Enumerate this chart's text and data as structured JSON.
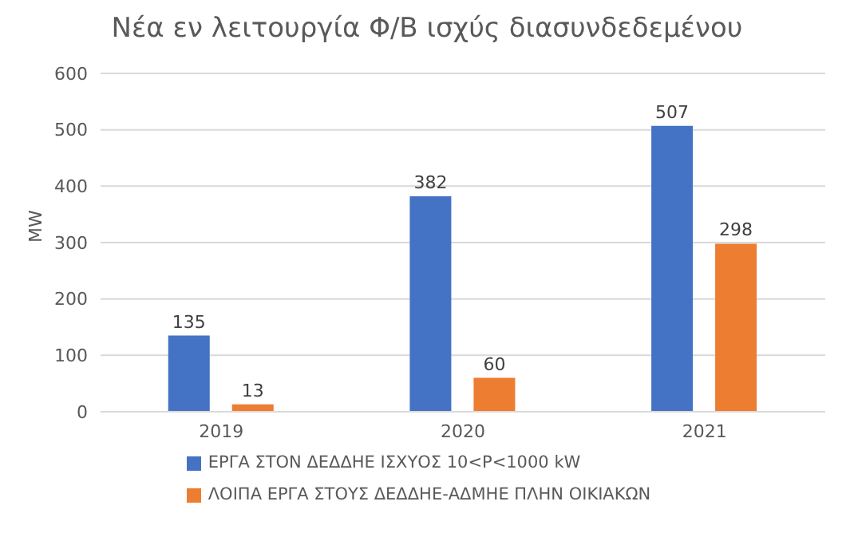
{
  "chart_data": {
    "type": "bar",
    "title": "Νέα εν λειτουργία Φ/Β ισχύς διασυνδεδεμένου",
    "ylabel": "MW",
    "categories": [
      "2019",
      "2020",
      "2021"
    ],
    "series": [
      {
        "name": "ΕΡΓΑ ΣΤΟΝ ΔΕΔΔΗΕ ΙΣΧΥΟΣ 10<P<1000 kW",
        "color": "#4472c4",
        "values": [
          135,
          382,
          507
        ]
      },
      {
        "name": "ΛΟΙΠΑ ΕΡΓΑ ΣΤΟΥΣ ΔΕΔΔΗΕ-ΑΔΜΗΕ ΠΛΗΝ ΟΙΚΙΑΚΩΝ",
        "color": "#ed7d31",
        "values": [
          13,
          60,
          298
        ]
      }
    ],
    "ylim": [
      0,
      600
    ],
    "yticks": [
      0,
      100,
      200,
      300,
      400,
      500,
      600
    ],
    "grid": "y",
    "legend": "bottom",
    "data_labels": true
  }
}
